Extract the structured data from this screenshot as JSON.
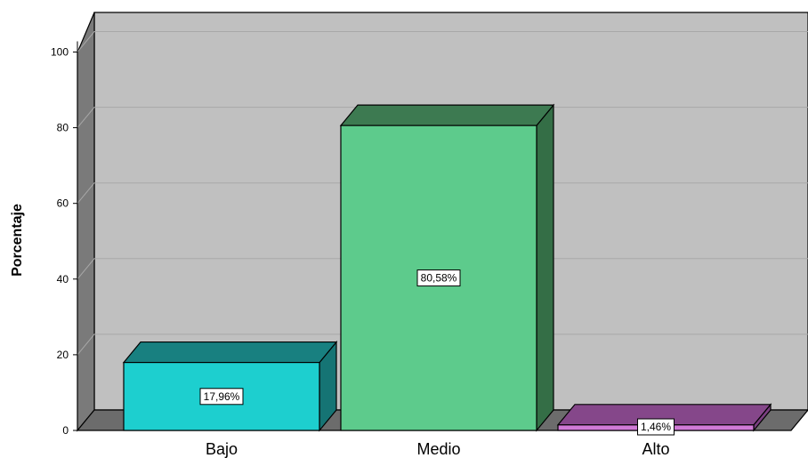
{
  "chart_data": {
    "type": "bar",
    "style": "3d",
    "categories": [
      "Bajo",
      "Medio",
      "Alto"
    ],
    "values": [
      17.96,
      80.58,
      1.46
    ],
    "data_labels": [
      "17,96%",
      "80,58%",
      "1,46%"
    ],
    "ylabel": "Porcentaje",
    "xlabel": "",
    "ylim": [
      0,
      100
    ],
    "yticks": [
      "0",
      "20",
      "40",
      "60",
      "80",
      "100"
    ],
    "grid": true,
    "colors": {
      "bars": [
        "#1dcfcf",
        "#5dcb8c",
        "#d07ad6"
      ],
      "bars_top": [
        "#188080",
        "#3d7a51",
        "#85478a"
      ],
      "bars_side": [
        "#157474",
        "#346e46",
        "#7a3f80"
      ],
      "wall_back": "#c0c0c0",
      "wall_side": "#7a7a7a",
      "floor": "#6c6c6c",
      "gridline": "#a8a8a8"
    }
  }
}
